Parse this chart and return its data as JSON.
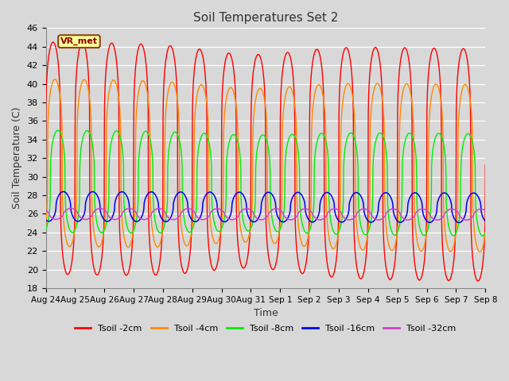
{
  "title": "Soil Temperatures Set 2",
  "xlabel": "Time",
  "ylabel": "Soil Temperature (C)",
  "ylim": [
    18,
    46
  ],
  "yticks": [
    18,
    20,
    22,
    24,
    26,
    28,
    30,
    32,
    34,
    36,
    38,
    40,
    42,
    44,
    46
  ],
  "x_labels": [
    "Aug 24",
    "Aug 25",
    "Aug 26",
    "Aug 27",
    "Aug 28",
    "Aug 29",
    "Aug 30",
    "Aug 31",
    "Sep 1",
    "Sep 2",
    "Sep 3",
    "Sep 4",
    "Sep 5",
    "Sep 6",
    "Sep 7",
    "Sep 8"
  ],
  "annotation_text": "VR_met",
  "legend_entries": [
    "Tsoil -2cm",
    "Tsoil -4cm",
    "Tsoil -8cm",
    "Tsoil -16cm",
    "Tsoil -32cm"
  ],
  "line_colors": [
    "#ff0000",
    "#ff8800",
    "#00ee00",
    "#0000ee",
    "#cc44cc"
  ],
  "bg_color": "#d8d8d8",
  "plot_bg_color": "#d8d8d8",
  "grid_color": "#ffffff",
  "num_days": 15,
  "samples_per_day": 144
}
